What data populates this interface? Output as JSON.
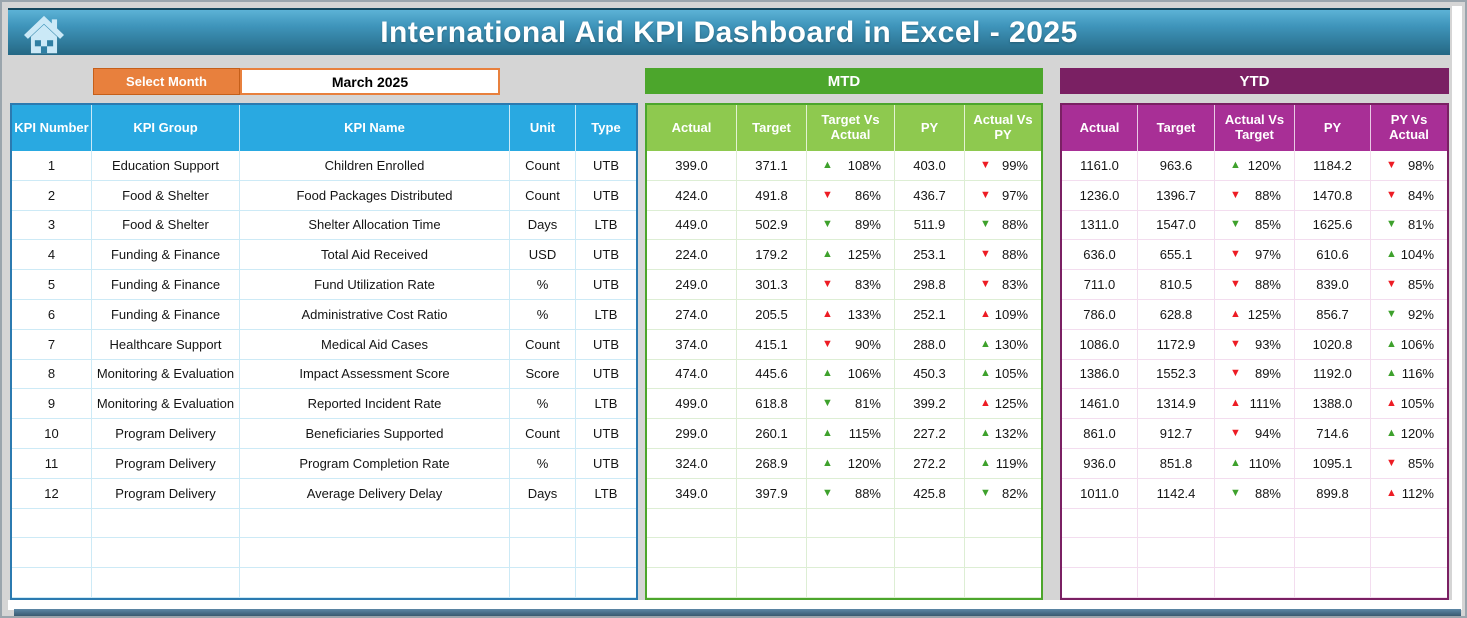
{
  "page": {
    "title": "International Aid KPI Dashboard in Excel - 2025"
  },
  "controls": {
    "select_month_label": "Select Month",
    "selected_month": "March 2025"
  },
  "sections": {
    "mtd_label": "MTD",
    "ytd_label": "YTD"
  },
  "kpi_table": {
    "headers": [
      "KPI Number",
      "KPI Group",
      "KPI Name",
      "Unit",
      "Type"
    ]
  },
  "mtd_table": {
    "headers": [
      "Actual",
      "Target",
      "Target Vs Actual",
      "PY",
      "Actual Vs PY"
    ]
  },
  "ytd_table": {
    "headers": [
      "Actual",
      "Target",
      "Actual Vs Target",
      "PY",
      "PY Vs Actual"
    ]
  },
  "colors": {
    "header_gradient_top": "#5cb2d6",
    "header_gradient_bottom": "#256884",
    "select_month_orange": "#e8803d",
    "kpi_header_blue": "#29a9e1",
    "kpi_border_blue": "#2b7ab0",
    "mtd_banner_green": "#4ca62c",
    "mtd_header_green": "#8ec94f",
    "ytd_banner_purple": "#7a2063",
    "ytd_header_magenta": "#a82f96",
    "indicator_up_good_green": "#3ea12c",
    "indicator_bad_red": "#ed1c24"
  },
  "empty_rows": 3,
  "rows": [
    {
      "num": "1",
      "group": "Education Support",
      "name": "Children Enrolled",
      "unit": "Count",
      "type": "UTB",
      "mtd": {
        "actual": "399.0",
        "target": "371.1",
        "target_vs_actual": {
          "dir": "up",
          "color": "green",
          "value": "108%"
        },
        "py": "403.0",
        "actual_vs_py": {
          "dir": "down",
          "color": "red",
          "value": "99%"
        }
      },
      "ytd": {
        "actual": "1161.0",
        "target": "963.6",
        "actual_vs_target": {
          "dir": "up",
          "color": "green",
          "value": "120%"
        },
        "py": "1184.2",
        "py_vs_actual": {
          "dir": "down",
          "color": "red",
          "value": "98%"
        }
      }
    },
    {
      "num": "2",
      "group": "Food & Shelter",
      "name": "Food Packages Distributed",
      "unit": "Count",
      "type": "UTB",
      "mtd": {
        "actual": "424.0",
        "target": "491.8",
        "target_vs_actual": {
          "dir": "down",
          "color": "red",
          "value": "86%"
        },
        "py": "436.7",
        "actual_vs_py": {
          "dir": "down",
          "color": "red",
          "value": "97%"
        }
      },
      "ytd": {
        "actual": "1236.0",
        "target": "1396.7",
        "actual_vs_target": {
          "dir": "down",
          "color": "red",
          "value": "88%"
        },
        "py": "1470.8",
        "py_vs_actual": {
          "dir": "down",
          "color": "red",
          "value": "84%"
        }
      }
    },
    {
      "num": "3",
      "group": "Food & Shelter",
      "name": "Shelter Allocation Time",
      "unit": "Days",
      "type": "LTB",
      "mtd": {
        "actual": "449.0",
        "target": "502.9",
        "target_vs_actual": {
          "dir": "down",
          "color": "green",
          "value": "89%"
        },
        "py": "511.9",
        "actual_vs_py": {
          "dir": "down",
          "color": "green",
          "value": "88%"
        }
      },
      "ytd": {
        "actual": "1311.0",
        "target": "1547.0",
        "actual_vs_target": {
          "dir": "down",
          "color": "green",
          "value": "85%"
        },
        "py": "1625.6",
        "py_vs_actual": {
          "dir": "down",
          "color": "green",
          "value": "81%"
        }
      }
    },
    {
      "num": "4",
      "group": "Funding & Finance",
      "name": "Total Aid Received",
      "unit": "USD",
      "type": "UTB",
      "mtd": {
        "actual": "224.0",
        "target": "179.2",
        "target_vs_actual": {
          "dir": "up",
          "color": "green",
          "value": "125%"
        },
        "py": "253.1",
        "actual_vs_py": {
          "dir": "down",
          "color": "red",
          "value": "88%"
        }
      },
      "ytd": {
        "actual": "636.0",
        "target": "655.1",
        "actual_vs_target": {
          "dir": "down",
          "color": "red",
          "value": "97%"
        },
        "py": "610.6",
        "py_vs_actual": {
          "dir": "up",
          "color": "green",
          "value": "104%"
        }
      }
    },
    {
      "num": "5",
      "group": "Funding & Finance",
      "name": "Fund Utilization Rate",
      "unit": "%",
      "type": "UTB",
      "mtd": {
        "actual": "249.0",
        "target": "301.3",
        "target_vs_actual": {
          "dir": "down",
          "color": "red",
          "value": "83%"
        },
        "py": "298.8",
        "actual_vs_py": {
          "dir": "down",
          "color": "red",
          "value": "83%"
        }
      },
      "ytd": {
        "actual": "711.0",
        "target": "810.5",
        "actual_vs_target": {
          "dir": "down",
          "color": "red",
          "value": "88%"
        },
        "py": "839.0",
        "py_vs_actual": {
          "dir": "down",
          "color": "red",
          "value": "85%"
        }
      }
    },
    {
      "num": "6",
      "group": "Funding & Finance",
      "name": "Administrative Cost Ratio",
      "unit": "%",
      "type": "LTB",
      "mtd": {
        "actual": "274.0",
        "target": "205.5",
        "target_vs_actual": {
          "dir": "up",
          "color": "red",
          "value": "133%"
        },
        "py": "252.1",
        "actual_vs_py": {
          "dir": "up",
          "color": "red",
          "value": "109%"
        }
      },
      "ytd": {
        "actual": "786.0",
        "target": "628.8",
        "actual_vs_target": {
          "dir": "up",
          "color": "red",
          "value": "125%"
        },
        "py": "856.7",
        "py_vs_actual": {
          "dir": "down",
          "color": "green",
          "value": "92%"
        }
      }
    },
    {
      "num": "7",
      "group": "Healthcare Support",
      "name": "Medical Aid Cases",
      "unit": "Count",
      "type": "UTB",
      "mtd": {
        "actual": "374.0",
        "target": "415.1",
        "target_vs_actual": {
          "dir": "down",
          "color": "red",
          "value": "90%"
        },
        "py": "288.0",
        "actual_vs_py": {
          "dir": "up",
          "color": "green",
          "value": "130%"
        }
      },
      "ytd": {
        "actual": "1086.0",
        "target": "1172.9",
        "actual_vs_target": {
          "dir": "down",
          "color": "red",
          "value": "93%"
        },
        "py": "1020.8",
        "py_vs_actual": {
          "dir": "up",
          "color": "green",
          "value": "106%"
        }
      }
    },
    {
      "num": "8",
      "group": "Monitoring & Evaluation",
      "name": "Impact Assessment Score",
      "unit": "Score",
      "type": "UTB",
      "mtd": {
        "actual": "474.0",
        "target": "445.6",
        "target_vs_actual": {
          "dir": "up",
          "color": "green",
          "value": "106%"
        },
        "py": "450.3",
        "actual_vs_py": {
          "dir": "up",
          "color": "green",
          "value": "105%"
        }
      },
      "ytd": {
        "actual": "1386.0",
        "target": "1552.3",
        "actual_vs_target": {
          "dir": "down",
          "color": "red",
          "value": "89%"
        },
        "py": "1192.0",
        "py_vs_actual": {
          "dir": "up",
          "color": "green",
          "value": "116%"
        }
      }
    },
    {
      "num": "9",
      "group": "Monitoring & Evaluation",
      "name": "Reported Incident Rate",
      "unit": "%",
      "type": "LTB",
      "mtd": {
        "actual": "499.0",
        "target": "618.8",
        "target_vs_actual": {
          "dir": "down",
          "color": "green",
          "value": "81%"
        },
        "py": "399.2",
        "actual_vs_py": {
          "dir": "up",
          "color": "red",
          "value": "125%"
        }
      },
      "ytd": {
        "actual": "1461.0",
        "target": "1314.9",
        "actual_vs_target": {
          "dir": "up",
          "color": "red",
          "value": "111%"
        },
        "py": "1388.0",
        "py_vs_actual": {
          "dir": "up",
          "color": "red",
          "value": "105%"
        }
      }
    },
    {
      "num": "10",
      "group": "Program Delivery",
      "name": "Beneficiaries Supported",
      "unit": "Count",
      "type": "UTB",
      "mtd": {
        "actual": "299.0",
        "target": "260.1",
        "target_vs_actual": {
          "dir": "up",
          "color": "green",
          "value": "115%"
        },
        "py": "227.2",
        "actual_vs_py": {
          "dir": "up",
          "color": "green",
          "value": "132%"
        }
      },
      "ytd": {
        "actual": "861.0",
        "target": "912.7",
        "actual_vs_target": {
          "dir": "down",
          "color": "red",
          "value": "94%"
        },
        "py": "714.6",
        "py_vs_actual": {
          "dir": "up",
          "color": "green",
          "value": "120%"
        }
      }
    },
    {
      "num": "11",
      "group": "Program Delivery",
      "name": "Program Completion Rate",
      "unit": "%",
      "type": "UTB",
      "mtd": {
        "actual": "324.0",
        "target": "268.9",
        "target_vs_actual": {
          "dir": "up",
          "color": "green",
          "value": "120%"
        },
        "py": "272.2",
        "actual_vs_py": {
          "dir": "up",
          "color": "green",
          "value": "119%"
        }
      },
      "ytd": {
        "actual": "936.0",
        "target": "851.8",
        "actual_vs_target": {
          "dir": "up",
          "color": "green",
          "value": "110%"
        },
        "py": "1095.1",
        "py_vs_actual": {
          "dir": "down",
          "color": "red",
          "value": "85%"
        }
      }
    },
    {
      "num": "12",
      "group": "Program Delivery",
      "name": "Average Delivery Delay",
      "unit": "Days",
      "type": "LTB",
      "mtd": {
        "actual": "349.0",
        "target": "397.9",
        "target_vs_actual": {
          "dir": "down",
          "color": "green",
          "value": "88%"
        },
        "py": "425.8",
        "actual_vs_py": {
          "dir": "down",
          "color": "green",
          "value": "82%"
        }
      },
      "ytd": {
        "actual": "1011.0",
        "target": "1142.4",
        "actual_vs_target": {
          "dir": "down",
          "color": "green",
          "value": "88%"
        },
        "py": "899.8",
        "py_vs_actual": {
          "dir": "up",
          "color": "red",
          "value": "112%"
        }
      }
    }
  ]
}
